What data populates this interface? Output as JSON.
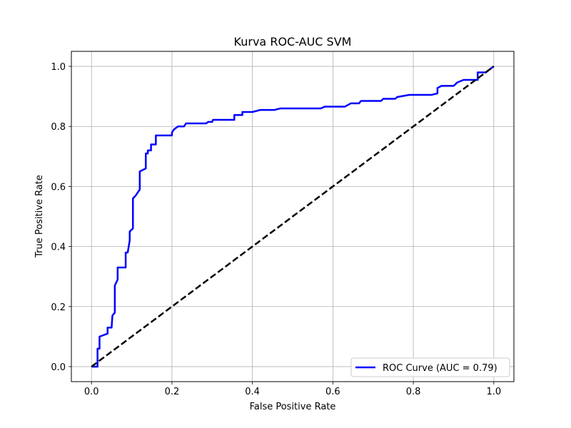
{
  "chart_data": {
    "type": "line",
    "title": "Kurva ROC-AUC SVM",
    "xlabel": "False Positive Rate",
    "ylabel": "True Positive Rate",
    "xlim": [
      -0.05,
      1.05
    ],
    "ylim": [
      -0.05,
      1.05
    ],
    "xticks": [
      "0.0",
      "0.2",
      "0.4",
      "0.6",
      "0.8",
      "1.0"
    ],
    "yticks": [
      "0.0",
      "0.2",
      "0.4",
      "0.6",
      "0.8",
      "1.0"
    ],
    "grid": true,
    "legend_position": "lower-right",
    "series": [
      {
        "name": "ROC Curve (AUC = 0.79)",
        "color": "#0000ff",
        "style": "solid",
        "points": [
          [
            0.0,
            0.0
          ],
          [
            0.015,
            0.0
          ],
          [
            0.015,
            0.06
          ],
          [
            0.02,
            0.06
          ],
          [
            0.02,
            0.1
          ],
          [
            0.04,
            0.11
          ],
          [
            0.04,
            0.13
          ],
          [
            0.05,
            0.13
          ],
          [
            0.052,
            0.17
          ],
          [
            0.058,
            0.18
          ],
          [
            0.058,
            0.27
          ],
          [
            0.065,
            0.29
          ],
          [
            0.065,
            0.33
          ],
          [
            0.085,
            0.33
          ],
          [
            0.085,
            0.38
          ],
          [
            0.09,
            0.38
          ],
          [
            0.095,
            0.42
          ],
          [
            0.095,
            0.45
          ],
          [
            0.103,
            0.46
          ],
          [
            0.103,
            0.56
          ],
          [
            0.11,
            0.57
          ],
          [
            0.12,
            0.59
          ],
          [
            0.12,
            0.65
          ],
          [
            0.135,
            0.66
          ],
          [
            0.135,
            0.71
          ],
          [
            0.14,
            0.71
          ],
          [
            0.14,
            0.72
          ],
          [
            0.148,
            0.72
          ],
          [
            0.148,
            0.74
          ],
          [
            0.16,
            0.74
          ],
          [
            0.16,
            0.77
          ],
          [
            0.2,
            0.77
          ],
          [
            0.2,
            0.78
          ],
          [
            0.205,
            0.79
          ],
          [
            0.215,
            0.8
          ],
          [
            0.23,
            0.8
          ],
          [
            0.235,
            0.81
          ],
          [
            0.285,
            0.81
          ],
          [
            0.29,
            0.815
          ],
          [
            0.3,
            0.815
          ],
          [
            0.302,
            0.822
          ],
          [
            0.355,
            0.822
          ],
          [
            0.355,
            0.838
          ],
          [
            0.375,
            0.838
          ],
          [
            0.375,
            0.848
          ],
          [
            0.4,
            0.848
          ],
          [
            0.42,
            0.855
          ],
          [
            0.455,
            0.855
          ],
          [
            0.47,
            0.86
          ],
          [
            0.57,
            0.86
          ],
          [
            0.58,
            0.866
          ],
          [
            0.63,
            0.866
          ],
          [
            0.645,
            0.877
          ],
          [
            0.665,
            0.877
          ],
          [
            0.67,
            0.885
          ],
          [
            0.72,
            0.885
          ],
          [
            0.725,
            0.892
          ],
          [
            0.755,
            0.892
          ],
          [
            0.76,
            0.898
          ],
          [
            0.79,
            0.905
          ],
          [
            0.845,
            0.905
          ],
          [
            0.86,
            0.91
          ],
          [
            0.86,
            0.928
          ],
          [
            0.87,
            0.935
          ],
          [
            0.9,
            0.935
          ],
          [
            0.91,
            0.947
          ],
          [
            0.925,
            0.955
          ],
          [
            0.96,
            0.955
          ],
          [
            0.96,
            0.98
          ],
          [
            0.98,
            0.98
          ],
          [
            0.99,
            0.99
          ],
          [
            1.0,
            1.0
          ]
        ]
      },
      {
        "name": "",
        "color": "#000000",
        "style": "dashed",
        "points": [
          [
            0.0,
            0.0
          ],
          [
            1.0,
            1.0
          ]
        ]
      }
    ]
  }
}
